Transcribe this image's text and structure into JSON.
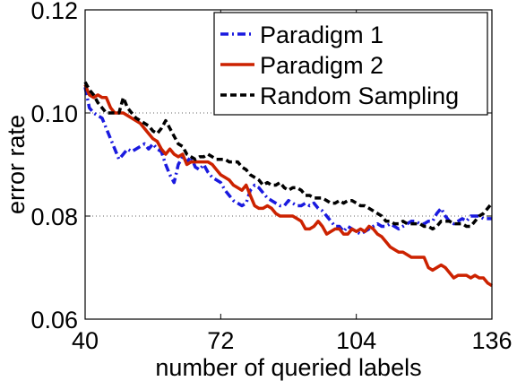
{
  "chart_data": {
    "type": "line",
    "xlabel": "number of queried labels",
    "ylabel": "error rate",
    "xlim": [
      40,
      136
    ],
    "ylim": [
      0.06,
      0.12
    ],
    "xticks": [
      40,
      72,
      104,
      136
    ],
    "xtick_labels": [
      "40",
      "72",
      "104",
      "136"
    ],
    "yticks": [
      0.06,
      0.08,
      0.1,
      0.12
    ],
    "ytick_labels": [
      "0.06",
      "0.08",
      "0.10",
      "0.12"
    ],
    "grid": "horizontal dotted at 0.08 and 0.10",
    "legend_position": "top-right",
    "series": [
      {
        "name": "Paradigm 1",
        "color": "#1a1adf",
        "style": "dashdot",
        "x": [
          40,
          41,
          42,
          43,
          44,
          45,
          46,
          47,
          48,
          49,
          50,
          51,
          52,
          53,
          54,
          55,
          56,
          57,
          58,
          59,
          60,
          61,
          62,
          63,
          64,
          65,
          66,
          67,
          68,
          69,
          70,
          71,
          72,
          73,
          74,
          75,
          76,
          77,
          78,
          79,
          80,
          81,
          82,
          83,
          84,
          85,
          86,
          87,
          88,
          89,
          90,
          91,
          92,
          93,
          94,
          95,
          96,
          97,
          98,
          99,
          100,
          101,
          102,
          103,
          104,
          105,
          106,
          107,
          108,
          109,
          110,
          111,
          112,
          113,
          114,
          115,
          116,
          117,
          118,
          119,
          120,
          121,
          122,
          123,
          124,
          125,
          126,
          127,
          128,
          129,
          130,
          131,
          132,
          133,
          134,
          135,
          136
        ],
        "y": [
          0.105,
          0.101,
          0.1,
          0.0995,
          0.099,
          0.097,
          0.095,
          0.093,
          0.091,
          0.092,
          0.093,
          0.0925,
          0.093,
          0.0935,
          0.094,
          0.093,
          0.094,
          0.093,
          0.0925,
          0.09,
          0.088,
          0.0865,
          0.09,
          0.0915,
          0.0905,
          0.0915,
          0.0895,
          0.089,
          0.09,
          0.0885,
          0.0875,
          0.087,
          0.0865,
          0.085,
          0.084,
          0.083,
          0.0825,
          0.082,
          0.0825,
          0.085,
          0.086,
          0.0855,
          0.0845,
          0.0835,
          0.083,
          0.0825,
          0.082,
          0.082,
          0.083,
          0.0825,
          0.082,
          0.082,
          0.0825,
          0.082,
          0.0825,
          0.0815,
          0.081,
          0.08,
          0.079,
          0.078,
          0.078,
          0.077,
          0.078,
          0.0775,
          0.077,
          0.0765,
          0.077,
          0.0775,
          0.078,
          0.0785,
          0.078,
          0.078,
          0.0785,
          0.078,
          0.0775,
          0.078,
          0.0785,
          0.079,
          0.079,
          0.0785,
          0.0785,
          0.079,
          0.079,
          0.0805,
          0.0815,
          0.08,
          0.079,
          0.0785,
          0.079,
          0.0795,
          0.079,
          0.08,
          0.08,
          0.08,
          0.0795,
          0.0795,
          0.0795
        ]
      },
      {
        "name": "Paradigm 2",
        "color": "#cc2200",
        "style": "solid",
        "x": [
          40,
          41,
          42,
          43,
          44,
          45,
          46,
          47,
          48,
          49,
          50,
          51,
          52,
          53,
          54,
          55,
          56,
          57,
          58,
          59,
          60,
          61,
          62,
          63,
          64,
          65,
          66,
          67,
          68,
          69,
          70,
          71,
          72,
          73,
          74,
          75,
          76,
          77,
          78,
          79,
          80,
          81,
          82,
          83,
          84,
          85,
          86,
          87,
          88,
          89,
          90,
          91,
          92,
          93,
          94,
          95,
          96,
          97,
          98,
          99,
          100,
          101,
          102,
          103,
          104,
          105,
          106,
          107,
          108,
          109,
          110,
          111,
          112,
          113,
          114,
          115,
          116,
          117,
          118,
          119,
          120,
          121,
          122,
          123,
          124,
          125,
          126,
          127,
          128,
          129,
          130,
          131,
          132,
          133,
          134,
          135,
          136
        ],
        "y": [
          0.1055,
          0.1035,
          0.103,
          0.1035,
          0.103,
          0.103,
          0.101,
          0.1,
          0.1,
          0.1,
          0.0995,
          0.099,
          0.0985,
          0.098,
          0.097,
          0.096,
          0.095,
          0.0945,
          0.093,
          0.092,
          0.093,
          0.092,
          0.0915,
          0.092,
          0.09,
          0.0905,
          0.0905,
          0.0905,
          0.0905,
          0.0905,
          0.09,
          0.089,
          0.088,
          0.0875,
          0.087,
          0.086,
          0.0855,
          0.085,
          0.086,
          0.084,
          0.082,
          0.0815,
          0.0815,
          0.082,
          0.0815,
          0.0805,
          0.08,
          0.08,
          0.08,
          0.08,
          0.0795,
          0.079,
          0.0775,
          0.0775,
          0.078,
          0.079,
          0.078,
          0.0765,
          0.077,
          0.0775,
          0.0775,
          0.0765,
          0.0765,
          0.0775,
          0.077,
          0.0775,
          0.077,
          0.078,
          0.0775,
          0.0765,
          0.076,
          0.075,
          0.074,
          0.0735,
          0.073,
          0.073,
          0.0725,
          0.072,
          0.072,
          0.072,
          0.072,
          0.07,
          0.0695,
          0.07,
          0.0705,
          0.07,
          0.069,
          0.068,
          0.0685,
          0.0685,
          0.0685,
          0.068,
          0.0685,
          0.068,
          0.068,
          0.067,
          0.0665
        ]
      },
      {
        "name": "Random Sampling",
        "color": "#000000",
        "style": "dashed",
        "x": [
          40,
          41,
          42,
          43,
          44,
          45,
          46,
          47,
          48,
          49,
          50,
          51,
          52,
          53,
          54,
          55,
          56,
          57,
          58,
          59,
          60,
          61,
          62,
          63,
          64,
          65,
          66,
          67,
          68,
          69,
          70,
          71,
          72,
          73,
          74,
          75,
          76,
          77,
          78,
          79,
          80,
          81,
          82,
          83,
          84,
          85,
          86,
          87,
          88,
          89,
          90,
          91,
          92,
          93,
          94,
          95,
          96,
          97,
          98,
          99,
          100,
          101,
          102,
          103,
          104,
          105,
          106,
          107,
          108,
          109,
          110,
          111,
          112,
          113,
          114,
          115,
          116,
          117,
          118,
          119,
          120,
          121,
          122,
          123,
          124,
          125,
          126,
          127,
          128,
          129,
          130,
          131,
          132,
          133,
          134,
          135,
          136
        ],
        "y": [
          0.106,
          0.1045,
          0.1035,
          0.102,
          0.101,
          0.1,
          0.1,
          0.1,
          0.1,
          0.103,
          0.101,
          0.1,
          0.099,
          0.0985,
          0.098,
          0.0975,
          0.0965,
          0.096,
          0.097,
          0.0985,
          0.097,
          0.0955,
          0.094,
          0.0935,
          0.092,
          0.0915,
          0.091,
          0.0915,
          0.0915,
          0.092,
          0.0915,
          0.091,
          0.091,
          0.091,
          0.0905,
          0.0905,
          0.0905,
          0.0895,
          0.089,
          0.088,
          0.0875,
          0.087,
          0.086,
          0.0865,
          0.086,
          0.086,
          0.0865,
          0.0855,
          0.085,
          0.0855,
          0.0855,
          0.085,
          0.084,
          0.084,
          0.0835,
          0.0835,
          0.0835,
          0.083,
          0.0825,
          0.0825,
          0.083,
          0.0825,
          0.083,
          0.083,
          0.0825,
          0.082,
          0.082,
          0.0815,
          0.081,
          0.0805,
          0.08,
          0.079,
          0.079,
          0.0785,
          0.0785,
          0.079,
          0.0785,
          0.0785,
          0.0785,
          0.0785,
          0.078,
          0.078,
          0.0775,
          0.078,
          0.079,
          0.079,
          0.079,
          0.0785,
          0.0785,
          0.0785,
          0.078,
          0.078,
          0.079,
          0.08,
          0.0805,
          0.0815,
          0.0825
        ]
      }
    ]
  }
}
